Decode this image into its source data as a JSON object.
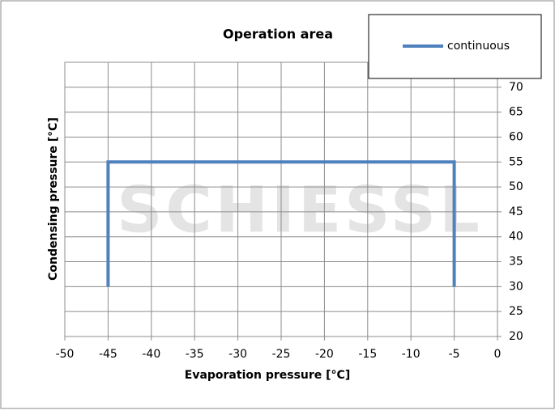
{
  "chart_data": {
    "type": "line",
    "title": "Operation area",
    "x_label": "Evaporation pressure [°C]",
    "y_label": "Condensing pressure [°C]",
    "watermark": "SCHIESSL",
    "x": [
      -45,
      -45,
      -5,
      -5
    ],
    "series": [
      {
        "name": "continuous",
        "color": "#4f81bd",
        "values": [
          30,
          55,
          55,
          30
        ]
      }
    ],
    "xlim": [
      -50,
      0
    ],
    "xticks": [
      -50,
      -45,
      -40,
      -35,
      -30,
      -25,
      -20,
      -15,
      -10,
      -5,
      0
    ],
    "ylim": [
      20,
      75
    ],
    "yticks": [
      20,
      25,
      30,
      35,
      40,
      45,
      50,
      55,
      60,
      65,
      70
    ],
    "grid": true,
    "legend": "top-right"
  }
}
